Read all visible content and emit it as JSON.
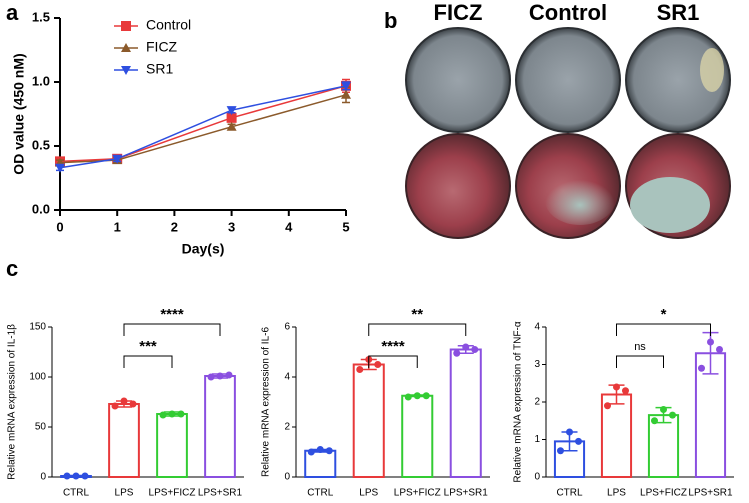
{
  "panel_labels": [
    "a",
    "b",
    "c"
  ],
  "panel_b": {
    "columns": [
      "FICZ",
      "Control",
      "SR1"
    ]
  },
  "chart_data": [
    {
      "type": "line",
      "y_label": "OD value (450 nM)",
      "x_label": "Day(s)",
      "xlim": [
        0,
        5
      ],
      "xticks": [
        0,
        1,
        2,
        3,
        4,
        5
      ],
      "ylim": [
        0,
        1.5
      ],
      "yticks": [
        {
          "value": 0,
          "label": "0.0"
        },
        0.5,
        {
          "value": 1,
          "label": "1.0"
        },
        1.5
      ],
      "legend": "upper-left",
      "x": [
        0,
        1,
        3,
        5
      ],
      "series": [
        {
          "name": "Control",
          "color": "#e8393a",
          "marker": "square",
          "values": [
            0.38,
            0.4,
            0.72,
            0.97
          ],
          "errors": [
            0.02,
            0.03,
            0.03,
            0.05
          ]
        },
        {
          "name": "FICZ",
          "color": "#8b5a2b",
          "marker": "triangle-up",
          "values": [
            0.37,
            0.39,
            0.65,
            0.9
          ],
          "errors": [
            0.02,
            0.02,
            0.02,
            0.06
          ]
        },
        {
          "name": "SR1",
          "color": "#2e4fe0",
          "marker": "triangle-down",
          "values": [
            0.33,
            0.4,
            0.78,
            0.97
          ],
          "errors": [
            0.02,
            0.02,
            0.02,
            0.03
          ]
        }
      ]
    },
    {
      "type": "bar",
      "y_label": "Relative mRNA expression of IL-1β",
      "ylim": [
        0,
        150
      ],
      "yticks": [
        0,
        50,
        100,
        150
      ],
      "categories": [
        "CTRL",
        "LPS",
        "LPS+FICZ",
        "LPS+SR1"
      ],
      "colors": [
        "#2e4fe0",
        "#e8393a",
        "#33cc33",
        "#8a4fe0"
      ],
      "values": [
        1,
        73,
        63,
        101
      ],
      "errors": [
        0.5,
        3,
        2,
        2
      ],
      "points": [
        [
          1,
          1,
          1
        ],
        [
          71,
          76,
          73
        ],
        [
          62,
          63,
          63
        ],
        [
          100,
          101,
          102
        ]
      ],
      "comparisons": [
        {
          "between": [
            "LPS",
            "LPS+FICZ"
          ],
          "label": "***"
        },
        {
          "between": [
            "LPS",
            "LPS+SR1"
          ],
          "label": "****"
        }
      ]
    },
    {
      "type": "bar",
      "y_label": "Relative mRNA expression of IL-6",
      "ylim": [
        0,
        6
      ],
      "yticks": [
        0,
        2,
        4,
        6
      ],
      "categories": [
        "CTRL",
        "LPS",
        "LPS+FICZ",
        "LPS+SR1"
      ],
      "colors": [
        "#2e4fe0",
        "#e8393a",
        "#33cc33",
        "#8a4fe0"
      ],
      "values": [
        1.05,
        4.5,
        3.25,
        5.1
      ],
      "errors": [
        0.05,
        0.2,
        0.03,
        0.15
      ],
      "points": [
        [
          1.0,
          1.1,
          1.05
        ],
        [
          4.3,
          4.7,
          4.5
        ],
        [
          3.2,
          3.25,
          3.25
        ],
        [
          4.95,
          5.2,
          5.1
        ]
      ],
      "comparisons": [
        {
          "between": [
            "LPS",
            "LPS+FICZ"
          ],
          "label": "****"
        },
        {
          "between": [
            "LPS",
            "LPS+SR1"
          ],
          "label": "**"
        }
      ]
    },
    {
      "type": "bar",
      "y_label": "Relative mRNA expression of TNF-α",
      "ylim": [
        0,
        4
      ],
      "yticks": [
        0,
        1,
        2,
        3,
        4
      ],
      "categories": [
        "CTRL",
        "LPS",
        "LPS+FICZ",
        "LPS+SR1"
      ],
      "colors": [
        "#2e4fe0",
        "#e8393a",
        "#33cc33",
        "#8a4fe0"
      ],
      "values": [
        0.95,
        2.2,
        1.65,
        3.3
      ],
      "errors": [
        0.25,
        0.25,
        0.2,
        0.55
      ],
      "points": [
        [
          0.7,
          1.2,
          0.95
        ],
        [
          1.9,
          2.4,
          2.3
        ],
        [
          1.5,
          1.8,
          1.65
        ],
        [
          2.9,
          3.6,
          3.4
        ]
      ],
      "comparisons": [
        {
          "between": [
            "LPS",
            "LPS+FICZ"
          ],
          "label": "ns"
        },
        {
          "between": [
            "LPS",
            "LPS+SR1"
          ],
          "label": "*"
        }
      ]
    }
  ]
}
